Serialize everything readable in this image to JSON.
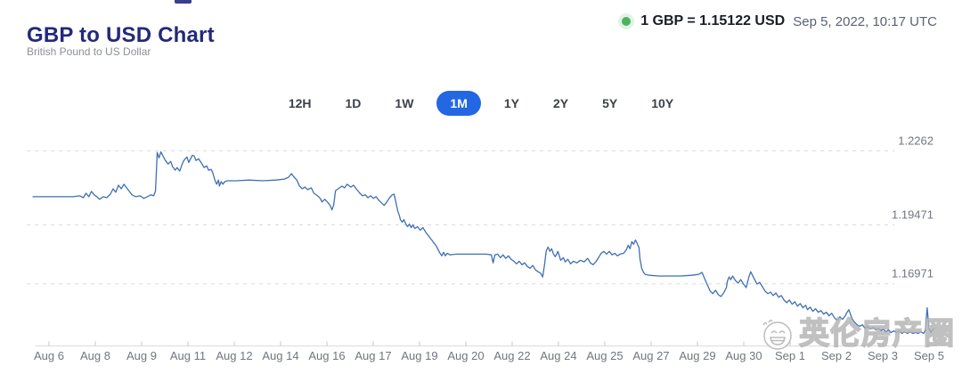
{
  "header": {
    "title": "GBP to USD Chart",
    "subtitle": "British Pound to US Dollar",
    "live_rate": "1 GBP = 1.15122 USD",
    "timestamp": "Sep 5, 2022, 10:17 UTC"
  },
  "range_tabs": {
    "options": [
      "12H",
      "1D",
      "1W",
      "1M",
      "1Y",
      "2Y",
      "5Y",
      "10Y"
    ],
    "selected": "1M"
  },
  "watermark": {
    "text": "英伦房产圈"
  },
  "colors": {
    "title_navy": "#23297a",
    "tab_selected_blue": "#2367e4",
    "line_blue": "#3f6fb5",
    "live_dot_green": "#4fb261",
    "grid_gray": "#d9d9d9"
  },
  "chart_data": {
    "type": "line",
    "title": "GBP to USD exchange rate, 1 month window",
    "legend": "none",
    "grid": "dashed-horizontal",
    "x_tick_labels": [
      "Aug 6",
      "Aug 8",
      "Aug 9",
      "Aug 11",
      "Aug 12",
      "Aug 14",
      "Aug 16",
      "Aug 17",
      "Aug 19",
      "Aug 20",
      "Aug 22",
      "Aug 24",
      "Aug 25",
      "Aug 27",
      "Aug 29",
      "Aug 30",
      "Sep 1",
      "Sep 2",
      "Sep 3",
      "Sep 5"
    ],
    "y_ticks": [
      1.2262,
      1.19471,
      1.16971
    ],
    "y_tick_labels": [
      "1.2262",
      "1.19471",
      "1.16971"
    ],
    "ylim": [
      1.145,
      1.229
    ],
    "x_domain": [
      0,
      100
    ],
    "points": [
      [
        0,
        1.2067
      ],
      [
        2.3,
        1.2067
      ],
      [
        4.5,
        1.2067
      ],
      [
        5.2,
        1.2071
      ],
      [
        5.6,
        1.2063
      ],
      [
        5.9,
        1.2082
      ],
      [
        6.2,
        1.2067
      ],
      [
        6.5,
        1.209
      ],
      [
        6.8,
        1.2075
      ],
      [
        7.1,
        1.2067
      ],
      [
        7.4,
        1.2056
      ],
      [
        7.8,
        1.2067
      ],
      [
        8.2,
        1.2063
      ],
      [
        8.6,
        1.2078
      ],
      [
        8.9,
        1.2101
      ],
      [
        9.2,
        1.2086
      ],
      [
        9.5,
        1.2116
      ],
      [
        9.8,
        1.2101
      ],
      [
        10.1,
        1.212
      ],
      [
        10.4,
        1.2105
      ],
      [
        10.7,
        1.209
      ],
      [
        11.0,
        1.2075
      ],
      [
        11.4,
        1.2067
      ],
      [
        11.9,
        1.2071
      ],
      [
        12.3,
        1.206
      ],
      [
        12.7,
        1.2067
      ],
      [
        13.1,
        1.2075
      ],
      [
        13.4,
        1.2071
      ],
      [
        13.6,
        1.209
      ],
      [
        13.7,
        1.2168
      ],
      [
        13.8,
        1.2255
      ],
      [
        14.0,
        1.2232
      ],
      [
        14.2,
        1.2258
      ],
      [
        14.4,
        1.2243
      ],
      [
        14.7,
        1.2221
      ],
      [
        15.0,
        1.2206
      ],
      [
        15.3,
        1.2217
      ],
      [
        15.5,
        1.2195
      ],
      [
        15.8,
        1.218
      ],
      [
        16.0,
        1.2191
      ],
      [
        16.3,
        1.2176
      ],
      [
        16.5,
        1.2198
      ],
      [
        16.7,
        1.2217
      ],
      [
        16.9,
        1.2228
      ],
      [
        17.1,
        1.2236
      ],
      [
        17.3,
        1.2213
      ],
      [
        17.5,
        1.2228
      ],
      [
        17.7,
        1.2243
      ],
      [
        17.9,
        1.224
      ],
      [
        18.1,
        1.2221
      ],
      [
        18.4,
        1.2228
      ],
      [
        18.7,
        1.221
      ],
      [
        19.0,
        1.2191
      ],
      [
        19.3,
        1.2198
      ],
      [
        19.5,
        1.218
      ],
      [
        19.8,
        1.2183
      ],
      [
        20.0,
        1.2165
      ],
      [
        20.2,
        1.2138
      ],
      [
        20.4,
        1.212
      ],
      [
        20.6,
        1.2138
      ],
      [
        20.7,
        1.2112
      ],
      [
        20.9,
        1.2131
      ],
      [
        21.1,
        1.212
      ],
      [
        21.3,
        1.2131
      ],
      [
        21.6,
        1.2135
      ],
      [
        22.6,
        1.2135
      ],
      [
        24.0,
        1.2138
      ],
      [
        25.5,
        1.2135
      ],
      [
        27.0,
        1.2138
      ],
      [
        27.9,
        1.2142
      ],
      [
        28.4,
        1.215
      ],
      [
        28.7,
        1.2165
      ],
      [
        29.0,
        1.215
      ],
      [
        29.3,
        1.2138
      ],
      [
        29.6,
        1.2112
      ],
      [
        29.9,
        1.2101
      ],
      [
        30.2,
        1.2108
      ],
      [
        30.5,
        1.2097
      ],
      [
        30.9,
        1.2105
      ],
      [
        31.2,
        1.2082
      ],
      [
        31.6,
        1.2071
      ],
      [
        31.9,
        1.206
      ],
      [
        32.1,
        1.2045
      ],
      [
        32.4,
        1.2056
      ],
      [
        32.7,
        1.2045
      ],
      [
        33.0,
        1.203
      ],
      [
        33.2,
        1.2011
      ],
      [
        33.4,
        1.2034
      ],
      [
        33.6,
        1.2093
      ],
      [
        33.9,
        1.2101
      ],
      [
        34.3,
        1.2112
      ],
      [
        34.6,
        1.2105
      ],
      [
        34.9,
        1.212
      ],
      [
        35.3,
        1.2108
      ],
      [
        35.6,
        1.2116
      ],
      [
        35.9,
        1.2101
      ],
      [
        36.3,
        1.2082
      ],
      [
        36.6,
        1.2071
      ],
      [
        36.9,
        1.2075
      ],
      [
        37.2,
        1.2063
      ],
      [
        37.5,
        1.2071
      ],
      [
        37.8,
        1.206
      ],
      [
        38.1,
        1.2067
      ],
      [
        38.4,
        1.2052
      ],
      [
        38.7,
        1.2041
      ],
      [
        39.0,
        1.203
      ],
      [
        39.3,
        1.2045
      ],
      [
        39.6,
        1.2063
      ],
      [
        39.9,
        1.2075
      ],
      [
        40.1,
        1.2078
      ],
      [
        40.3,
        1.2045
      ],
      [
        40.5,
        1.2007
      ],
      [
        40.7,
        1.1985
      ],
      [
        40.8,
        1.197
      ],
      [
        41.0,
        1.1959
      ],
      [
        41.2,
        1.197
      ],
      [
        41.4,
        1.1951
      ],
      [
        41.6,
        1.194
      ],
      [
        41.8,
        1.1951
      ],
      [
        42.0,
        1.1936
      ],
      [
        42.2,
        1.1947
      ],
      [
        42.4,
        1.1932
      ],
      [
        42.7,
        1.194
      ],
      [
        43.0,
        1.1925
      ],
      [
        43.3,
        1.1936
      ],
      [
        43.6,
        1.1917
      ],
      [
        43.9,
        1.1902
      ],
      [
        44.2,
        1.1887
      ],
      [
        44.5,
        1.1872
      ],
      [
        44.8,
        1.1857
      ],
      [
        45.0,
        1.1842
      ],
      [
        45.2,
        1.1827
      ],
      [
        45.4,
        1.1816
      ],
      [
        45.6,
        1.1831
      ],
      [
        45.8,
        1.1816
      ],
      [
        46.0,
        1.1827
      ],
      [
        46.3,
        1.182
      ],
      [
        47.0,
        1.1823
      ],
      [
        48.0,
        1.1823
      ],
      [
        49.2,
        1.1823
      ],
      [
        50.3,
        1.1823
      ],
      [
        50.9,
        1.182
      ],
      [
        51.1,
        1.1786
      ],
      [
        51.3,
        1.182
      ],
      [
        51.6,
        1.1823
      ],
      [
        51.9,
        1.1808
      ],
      [
        52.2,
        1.182
      ],
      [
        52.5,
        1.1805
      ],
      [
        52.8,
        1.1816
      ],
      [
        53.1,
        1.1801
      ],
      [
        53.4,
        1.1793
      ],
      [
        53.7,
        1.1782
      ],
      [
        54.0,
        1.1793
      ],
      [
        54.3,
        1.1778
      ],
      [
        54.6,
        1.1786
      ],
      [
        54.9,
        1.1771
      ],
      [
        55.2,
        1.1763
      ],
      [
        55.5,
        1.1775
      ],
      [
        55.8,
        1.1756
      ],
      [
        56.1,
        1.1748
      ],
      [
        56.4,
        1.1741
      ],
      [
        56.6,
        1.1726
      ],
      [
        56.8,
        1.1775
      ],
      [
        57.0,
        1.1838
      ],
      [
        57.2,
        1.1853
      ],
      [
        57.4,
        1.1835
      ],
      [
        57.6,
        1.1846
      ],
      [
        57.8,
        1.1823
      ],
      [
        58.0,
        1.1812
      ],
      [
        58.3,
        1.1835
      ],
      [
        58.6,
        1.1797
      ],
      [
        58.9,
        1.1808
      ],
      [
        59.1,
        1.179
      ],
      [
        59.4,
        1.1801
      ],
      [
        59.7,
        1.1782
      ],
      [
        60.0,
        1.1793
      ],
      [
        60.4,
        1.1786
      ],
      [
        60.8,
        1.1797
      ],
      [
        61.2,
        1.179
      ],
      [
        61.6,
        1.1805
      ],
      [
        61.9,
        1.1786
      ],
      [
        62.2,
        1.1778
      ],
      [
        62.5,
        1.179
      ],
      [
        62.8,
        1.1808
      ],
      [
        63.1,
        1.1827
      ],
      [
        63.4,
        1.1835
      ],
      [
        63.7,
        1.1823
      ],
      [
        64.0,
        1.1835
      ],
      [
        64.3,
        1.182
      ],
      [
        64.6,
        1.1827
      ],
      [
        64.9,
        1.1816
      ],
      [
        65.2,
        1.1823
      ],
      [
        65.6,
        1.1827
      ],
      [
        65.9,
        1.1842
      ],
      [
        66.1,
        1.1861
      ],
      [
        66.3,
        1.1846
      ],
      [
        66.5,
        1.1876
      ],
      [
        66.7,
        1.1865
      ],
      [
        66.9,
        1.1883
      ],
      [
        67.1,
        1.1868
      ],
      [
        67.3,
        1.185
      ],
      [
        67.4,
        1.1805
      ],
      [
        67.6,
        1.1763
      ],
      [
        67.8,
        1.1745
      ],
      [
        68.0,
        1.1737
      ],
      [
        68.5,
        1.1733
      ],
      [
        69.5,
        1.173
      ],
      [
        70.7,
        1.173
      ],
      [
        71.9,
        1.173
      ],
      [
        73.1,
        1.1733
      ],
      [
        73.9,
        1.1737
      ],
      [
        74.3,
        1.1745
      ],
      [
        74.6,
        1.1718
      ],
      [
        74.9,
        1.1692
      ],
      [
        75.2,
        1.1666
      ],
      [
        75.5,
        1.1655
      ],
      [
        75.8,
        1.167
      ],
      [
        76.1,
        1.1651
      ],
      [
        76.4,
        1.1643
      ],
      [
        76.7,
        1.1658
      ],
      [
        77.0,
        1.1681
      ],
      [
        77.1,
        1.1707
      ],
      [
        77.3,
        1.1726
      ],
      [
        77.5,
        1.1715
      ],
      [
        77.7,
        1.173
      ],
      [
        78.0,
        1.1711
      ],
      [
        78.3,
        1.17
      ],
      [
        78.6,
        1.1715
      ],
      [
        78.9,
        1.1696
      ],
      [
        79.2,
        1.1681
      ],
      [
        79.5,
        1.1726
      ],
      [
        79.7,
        1.1748
      ],
      [
        79.9,
        1.1733
      ],
      [
        80.1,
        1.1718
      ],
      [
        80.4,
        1.1696
      ],
      [
        80.7,
        1.1703
      ],
      [
        81.0,
        1.1685
      ],
      [
        81.3,
        1.1666
      ],
      [
        81.6,
        1.1655
      ],
      [
        81.9,
        1.1662
      ],
      [
        82.2,
        1.1647
      ],
      [
        82.5,
        1.1658
      ],
      [
        82.8,
        1.164
      ],
      [
        83.1,
        1.1647
      ],
      [
        83.4,
        1.1628
      ],
      [
        83.7,
        1.1617
      ],
      [
        84.0,
        1.1628
      ],
      [
        84.3,
        1.161
      ],
      [
        84.6,
        1.1621
      ],
      [
        84.9,
        1.1602
      ],
      [
        85.2,
        1.1613
      ],
      [
        85.5,
        1.1595
      ],
      [
        85.8,
        1.1606
      ],
      [
        86.0,
        1.1587
      ],
      [
        86.3,
        1.1598
      ],
      [
        86.6,
        1.158
      ],
      [
        86.9,
        1.1591
      ],
      [
        87.2,
        1.1576
      ],
      [
        87.5,
        1.1583
      ],
      [
        87.8,
        1.1568
      ],
      [
        88.1,
        1.1576
      ],
      [
        88.4,
        1.1561
      ],
      [
        88.7,
        1.1572
      ],
      [
        89.0,
        1.1553
      ],
      [
        89.3,
        1.1542
      ],
      [
        89.6,
        1.1557
      ],
      [
        89.9,
        1.1546
      ],
      [
        90.2,
        1.1561
      ],
      [
        90.4,
        1.1576
      ],
      [
        90.6,
        1.1587
      ],
      [
        90.8,
        1.1565
      ],
      [
        91.0,
        1.1546
      ],
      [
        91.2,
        1.1535
      ],
      [
        91.5,
        1.1523
      ],
      [
        91.8,
        1.1516
      ],
      [
        92.1,
        1.1523
      ],
      [
        92.4,
        1.1508
      ],
      [
        92.7,
        1.1516
      ],
      [
        93.0,
        1.1505
      ],
      [
        93.3,
        1.1512
      ],
      [
        93.6,
        1.1501
      ],
      [
        93.9,
        1.1508
      ],
      [
        94.2,
        1.1497
      ],
      [
        94.4,
        1.1505
      ],
      [
        94.7,
        1.1493
      ],
      [
        95.0,
        1.1501
      ],
      [
        95.3,
        1.149
      ],
      [
        95.6,
        1.1497
      ],
      [
        95.9,
        1.149
      ],
      [
        96.2,
        1.1497
      ],
      [
        96.5,
        1.1486
      ],
      [
        96.8,
        1.1493
      ],
      [
        97.1,
        1.1486
      ],
      [
        97.4,
        1.1493
      ],
      [
        97.7,
        1.1486
      ],
      [
        98.0,
        1.149
      ],
      [
        98.3,
        1.1486
      ],
      [
        98.6,
        1.1493
      ],
      [
        98.9,
        1.1486
      ],
      [
        99.1,
        1.1501
      ],
      [
        99.3,
        1.1595
      ],
      [
        99.5,
        1.1508
      ],
      [
        99.7,
        1.149
      ],
      [
        100,
        1.1505
      ]
    ]
  }
}
